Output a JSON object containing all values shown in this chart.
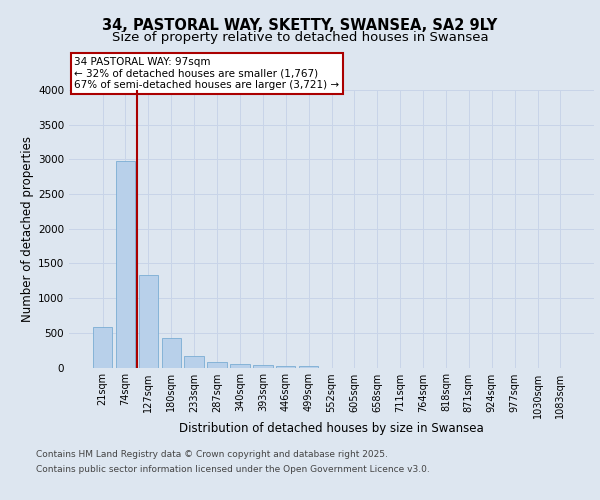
{
  "title_line1": "34, PASTORAL WAY, SKETTY, SWANSEA, SA2 9LY",
  "title_line2": "Size of property relative to detached houses in Swansea",
  "xlabel": "Distribution of detached houses by size in Swansea",
  "ylabel": "Number of detached properties",
  "categories": [
    "21sqm",
    "74sqm",
    "127sqm",
    "180sqm",
    "233sqm",
    "287sqm",
    "340sqm",
    "393sqm",
    "446sqm",
    "499sqm",
    "552sqm",
    "605sqm",
    "658sqm",
    "711sqm",
    "764sqm",
    "818sqm",
    "871sqm",
    "924sqm",
    "977sqm",
    "1030sqm",
    "1083sqm"
  ],
  "values": [
    580,
    2970,
    1330,
    430,
    165,
    80,
    55,
    30,
    25,
    25,
    0,
    0,
    0,
    0,
    0,
    0,
    0,
    0,
    0,
    0,
    0
  ],
  "bar_color": "#b8d0ea",
  "bar_edge_color": "#7aadd4",
  "vline_x": 1.5,
  "vline_color": "#aa0000",
  "annotation_text": "34 PASTORAL WAY: 97sqm\n← 32% of detached houses are smaller (1,767)\n67% of semi-detached houses are larger (3,721) →",
  "annotation_box_color": "#ffffff",
  "annotation_box_edge": "#aa0000",
  "ylim": [
    0,
    4000
  ],
  "yticks": [
    0,
    500,
    1000,
    1500,
    2000,
    2500,
    3000,
    3500,
    4000
  ],
  "grid_color": "#c8d4e8",
  "background_color": "#dde6f0",
  "plot_bg_color": "#dde6f0",
  "footer_line1": "Contains HM Land Registry data © Crown copyright and database right 2025.",
  "footer_line2": "Contains public sector information licensed under the Open Government Licence v3.0.",
  "title_fontsize": 10.5,
  "subtitle_fontsize": 9.5,
  "tick_fontsize": 7,
  "label_fontsize": 8.5,
  "annotation_fontsize": 7.5,
  "footer_fontsize": 6.5
}
